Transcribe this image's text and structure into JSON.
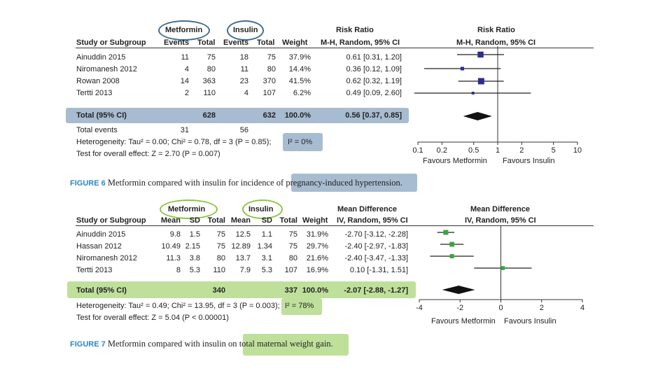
{
  "fig6": {
    "group_a": "Metformin",
    "group_b": "Insulin",
    "headers": {
      "study": "Study or Subgroup",
      "events_a": "Events",
      "total_a": "Total",
      "events_b": "Events",
      "total_b": "Total",
      "weight": "Weight",
      "effect_title": "Risk Ratio",
      "effect_method": "M-H, Random, 95% CI",
      "plot_title": "Risk Ratio",
      "plot_method": "M-H, Random, 95% CI"
    },
    "rows": [
      {
        "study": "Ainuddin 2015",
        "events_a": "11",
        "total_a": "75",
        "events_b": "18",
        "total_b": "75",
        "weight": "37.9%",
        "ci": "0.61 [0.31, 1.20]"
      },
      {
        "study": "Niromanesh 2012",
        "events_a": "4",
        "total_a": "80",
        "events_b": "11",
        "total_b": "80",
        "weight": "14.4%",
        "ci": "0.36 [0.12, 1.09]"
      },
      {
        "study": "Rowan 2008",
        "events_a": "14",
        "total_a": "363",
        "events_b": "23",
        "total_b": "370",
        "weight": "41.5%",
        "ci": "0.62 [0.32, 1.19]"
      },
      {
        "study": "Tertti 2013",
        "events_a": "2",
        "total_a": "110",
        "events_b": "4",
        "total_b": "107",
        "weight": "6.2%",
        "ci": "0.49 [0.09, 2.60]"
      }
    ],
    "total": {
      "label": "Total (95% CI)",
      "total_a": "628",
      "total_b": "632",
      "weight": "100.0%",
      "ci": "0.56 [0.37, 0.85]"
    },
    "total_events": {
      "label": "Total events",
      "events_a": "31",
      "events_b": "56"
    },
    "heterogeneity": "Heterogeneity: Tau² = 0.00; Chi² = 0.78, df = 3 (P = 0.85);",
    "i2": "I² = 0%",
    "overall": "Test for overall effect: Z = 2.70 (P = 0.007)",
    "axis_labels": [
      "0.1",
      "0.2",
      "0.5",
      "1",
      "2",
      "5",
      "10"
    ],
    "favours_left": "Favours Metformin",
    "favours_right": "Favours Insulin",
    "caption_label": "FIGURE 6",
    "caption_text": "Metformin compared with insulin for incidence of",
    "caption_highlight": "pregnancy-induced hypertension",
    "caption_end": ".",
    "highlight_color": "#a7bcd0",
    "ring_color": "#3f6e96"
  },
  "fig7": {
    "group_a": "Metformin",
    "group_b": "Insulin",
    "headers": {
      "study": "Study or Subgroup",
      "mean_a": "Mean",
      "sd_a": "SD",
      "total_a": "Total",
      "mean_b": "Mean",
      "sd_b": "SD",
      "total_b": "Total",
      "weight": "Weight",
      "effect_title": "Mean Difference",
      "effect_method": "IV, Random, 95% CI",
      "plot_title": "Mean Difference",
      "plot_method": "IV, Random, 95% CI"
    },
    "rows": [
      {
        "study": "Ainuddin 2015",
        "mean_a": "9.8",
        "sd_a": "1.5",
        "total_a": "75",
        "mean_b": "12.5",
        "sd_b": "1.1",
        "total_b": "75",
        "weight": "31.9%",
        "ci": "-2.70 [-3.12, -2.28]"
      },
      {
        "study": "Hassan 2012",
        "mean_a": "10.49",
        "sd_a": "2.15",
        "total_a": "75",
        "mean_b": "12.89",
        "sd_b": "1.34",
        "total_b": "75",
        "weight": "29.7%",
        "ci": "-2.40 [-2.97, -1.83]"
      },
      {
        "study": "Niromanesh 2012",
        "mean_a": "11.3",
        "sd_a": "3.8",
        "total_a": "80",
        "mean_b": "13.7",
        "sd_b": "3.1",
        "total_b": "80",
        "weight": "21.6%",
        "ci": "-2.40 [-3.47, -1.33]"
      },
      {
        "study": "Tertti 2013",
        "mean_a": "8",
        "sd_a": "5.3",
        "total_a": "110",
        "mean_b": "7.9",
        "sd_b": "5.3",
        "total_b": "107",
        "weight": "16.9%",
        "ci": "0.10 [-1.31, 1.51]"
      }
    ],
    "total": {
      "label": "Total (95% CI)",
      "total_a": "340",
      "total_b": "337",
      "weight": "100.0%",
      "ci": "-2.07 [-2.88, -1.27]"
    },
    "heterogeneity": "Heterogeneity: Tau² = 0.49; Chi² = 13.95, df = 3 (P = 0.003);",
    "i2": "I² = 78%",
    "overall": "Test for overall effect: Z = 5.04 (P < 0.00001)",
    "axis_labels": [
      "-4",
      "-2",
      "0",
      "2",
      "4"
    ],
    "favours_left": "Favours Metformin",
    "favours_right": "Favours Insulin",
    "caption_label": "FIGURE 7",
    "caption_text": "Metformin compared with insulin on",
    "caption_highlight": "total maternal weight gain",
    "caption_end": ".",
    "highlight_color": "#bfe09a",
    "ring_color": "#8cc63f"
  },
  "chart_data": [
    {
      "type": "forest",
      "title": "Risk Ratio (M-H, Random, 95% CI)",
      "scale": "log",
      "xlim": [
        0.1,
        10
      ],
      "xticks": [
        0.1,
        0.2,
        0.5,
        1,
        2,
        5,
        10
      ],
      "null_line": 1,
      "studies": [
        {
          "name": "Ainuddin 2015",
          "estimate": 0.61,
          "lower": 0.31,
          "upper": 1.2,
          "weight": 37.9
        },
        {
          "name": "Niromanesh 2012",
          "estimate": 0.36,
          "lower": 0.12,
          "upper": 1.09,
          "weight": 14.4
        },
        {
          "name": "Rowan 2008",
          "estimate": 0.62,
          "lower": 0.32,
          "upper": 1.19,
          "weight": 41.5
        },
        {
          "name": "Tertti 2013",
          "estimate": 0.49,
          "lower": 0.09,
          "upper": 2.6,
          "weight": 6.2
        }
      ],
      "pooled": {
        "estimate": 0.56,
        "lower": 0.37,
        "upper": 0.85
      },
      "marker_color": "#2d2d8f"
    },
    {
      "type": "forest",
      "title": "Mean Difference (IV, Random, 95% CI)",
      "scale": "linear",
      "xlim": [
        -4,
        4
      ],
      "xticks": [
        -4,
        -2,
        0,
        2,
        4
      ],
      "null_line": 0,
      "studies": [
        {
          "name": "Ainuddin 2015",
          "estimate": -2.7,
          "lower": -3.12,
          "upper": -2.28,
          "weight": 31.9
        },
        {
          "name": "Hassan 2012",
          "estimate": -2.4,
          "lower": -2.97,
          "upper": -1.83,
          "weight": 29.7
        },
        {
          "name": "Niromanesh 2012",
          "estimate": -2.4,
          "lower": -3.47,
          "upper": -1.33,
          "weight": 21.6
        },
        {
          "name": "Tertti 2013",
          "estimate": 0.1,
          "lower": -1.31,
          "upper": 1.51,
          "weight": 16.9
        }
      ],
      "pooled": {
        "estimate": -2.07,
        "lower": -2.88,
        "upper": -1.27
      },
      "marker_color": "#3aa63a"
    }
  ]
}
